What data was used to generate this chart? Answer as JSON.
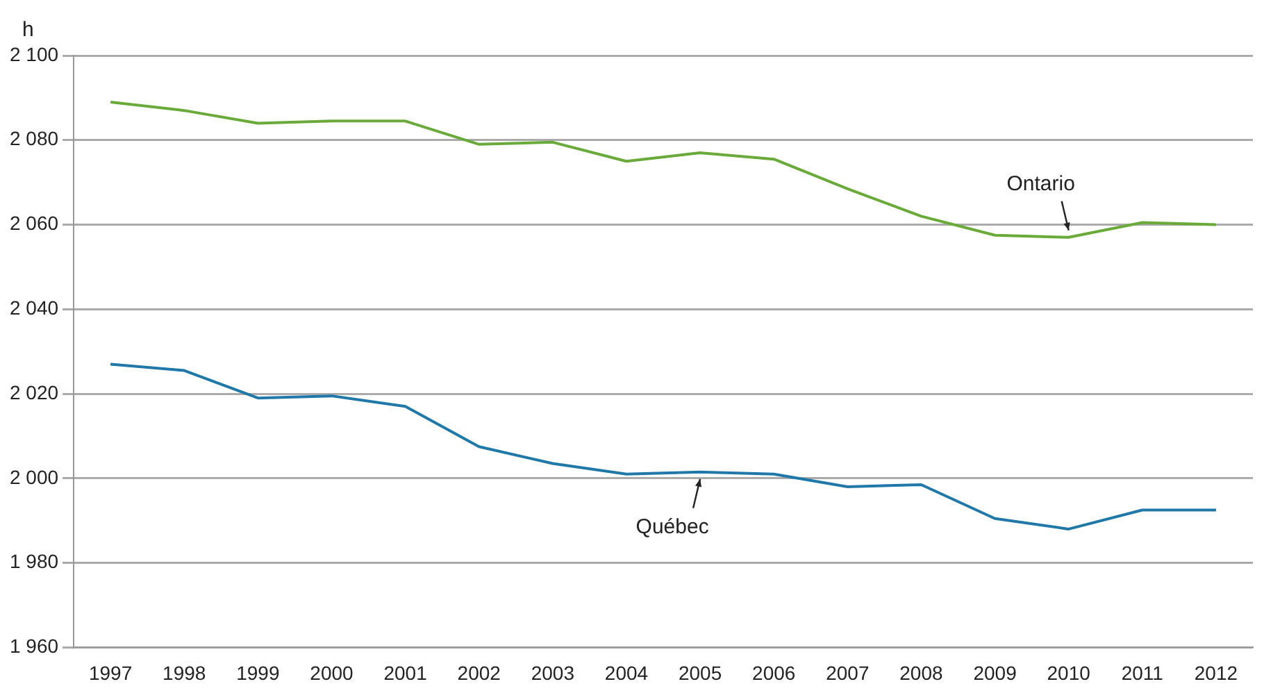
{
  "chart_data": {
    "type": "line",
    "ylabel": "h",
    "categories": [
      "1997",
      "1998",
      "1999",
      "2000",
      "2001",
      "2002",
      "2003",
      "2004",
      "2005",
      "2006",
      "2007",
      "2008",
      "2009",
      "2010",
      "2011",
      "2012"
    ],
    "series": [
      {
        "name": "Ontario",
        "color": "#6aaa3a",
        "values": [
          2089,
          2087,
          2084,
          2084.5,
          2084.5,
          2079,
          2079.5,
          2075,
          2077,
          2075.5,
          2068.5,
          2062,
          2057.5,
          2057,
          2060.5,
          2060
        ]
      },
      {
        "name": "Québec",
        "color": "#1f78a8",
        "values": [
          2027,
          2025.5,
          2019,
          2019.5,
          2017,
          2007.5,
          2003.5,
          2001,
          2001.5,
          2001,
          1998,
          1998.5,
          1990.5,
          1988,
          1992.5,
          1992.5
        ]
      }
    ],
    "ylim": [
      1960,
      2100
    ],
    "yticks": [
      {
        "value": 1960,
        "label": "1 960"
      },
      {
        "value": 1980,
        "label": "1 980"
      },
      {
        "value": 2000,
        "label": "2 000"
      },
      {
        "value": 2020,
        "label": "2 020"
      },
      {
        "value": 2040,
        "label": "2 040"
      },
      {
        "value": 2060,
        "label": "2 060"
      },
      {
        "value": 2080,
        "label": "2 080"
      },
      {
        "value": 2100,
        "label": "2 100"
      }
    ],
    "grid": "y",
    "legend": false,
    "marker": "none",
    "line_style": "solid"
  }
}
